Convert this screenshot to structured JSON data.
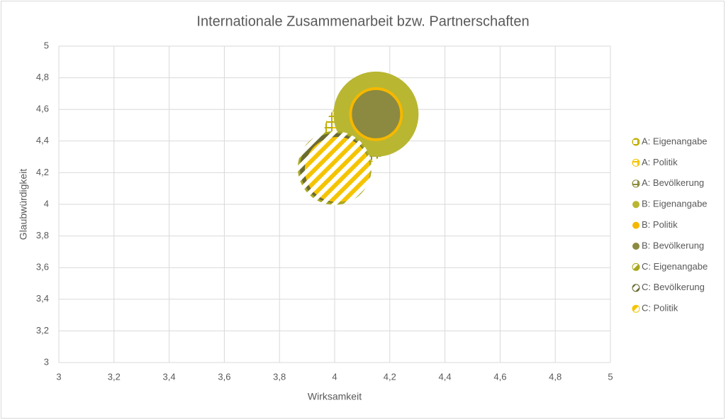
{
  "chart_data": {
    "type": "bubble",
    "title": "Internationale Zusammenarbeit bzw. Partnerschaften",
    "x_label": "Wirksamkeit",
    "y_label": "Glaubwürdigkeit",
    "xlim": [
      3,
      5
    ],
    "ylim": [
      3,
      5
    ],
    "xticks": [
      3,
      {
        "value": 3.2,
        "label": "3,2"
      },
      {
        "value": 3.4,
        "label": "3,4"
      },
      {
        "value": 3.6,
        "label": "3,6"
      },
      {
        "value": 3.8,
        "label": "3,8"
      },
      4,
      {
        "value": 4.2,
        "label": "4,2"
      },
      {
        "value": 4.4,
        "label": "4,4"
      },
      {
        "value": 4.6,
        "label": "4,6"
      },
      {
        "value": 4.8,
        "label": "4,8"
      },
      5
    ],
    "yticks": [
      3,
      {
        "value": 3.2,
        "label": "3,2"
      },
      {
        "value": 3.4,
        "label": "3,4"
      },
      {
        "value": 3.6,
        "label": "3,6"
      },
      {
        "value": 3.8,
        "label": "3,8"
      },
      4,
      {
        "value": 4.2,
        "label": "4,2"
      },
      {
        "value": 4.4,
        "label": "4,4"
      },
      {
        "value": 4.6,
        "label": "4,6"
      },
      {
        "value": 4.8,
        "label": "4,8"
      },
      5
    ],
    "grid": true,
    "legend": "right",
    "series": [
      {
        "name": "A: Eigenangabe",
        "color": "#c2ae00",
        "pattern": "grid",
        "x": [
          4.08
        ],
        "values": [
          4.45
        ],
        "size": [
          46
        ]
      },
      {
        "name": "A: Politik",
        "color": "#f5c400",
        "pattern": "grid",
        "x": [
          4.1
        ],
        "values": [
          4.45
        ],
        "size": [
          42
        ]
      },
      {
        "name": "A: Bevölkerung",
        "color": "#8a8a3c",
        "pattern": "grid",
        "x": [
          4.12
        ],
        "values": [
          4.46
        ],
        "size": [
          40
        ]
      },
      {
        "name": "B: Eigenangabe",
        "color": "#b9b632",
        "pattern": "solid",
        "x": [
          4.15
        ],
        "values": [
          4.57
        ],
        "size": [
          60
        ]
      },
      {
        "name": "B: Politik",
        "color": "#f5b800",
        "pattern": "solid",
        "x": [
          4.15
        ],
        "values": [
          4.57
        ],
        "size": [
          38
        ]
      },
      {
        "name": "B: Bevölkerung",
        "color": "#8c8a40",
        "pattern": "solid",
        "x": [
          4.15
        ],
        "values": [
          4.57
        ],
        "size": [
          35
        ]
      },
      {
        "name": "C: Eigenangabe",
        "color": "#a8a820",
        "pattern": "stripes",
        "x": [
          4.0
        ],
        "values": [
          4.23
        ],
        "size": [
          52
        ]
      },
      {
        "name": "C: Bevölkerung",
        "color": "#6b6b30",
        "pattern": "stripes",
        "x": [
          4.0
        ],
        "values": [
          4.23
        ],
        "size": [
          49
        ]
      },
      {
        "name": "C: Politik",
        "color": "#f5c400",
        "pattern": "stripes",
        "x": [
          4.01
        ],
        "values": [
          4.22
        ],
        "size": [
          46
        ]
      }
    ]
  }
}
